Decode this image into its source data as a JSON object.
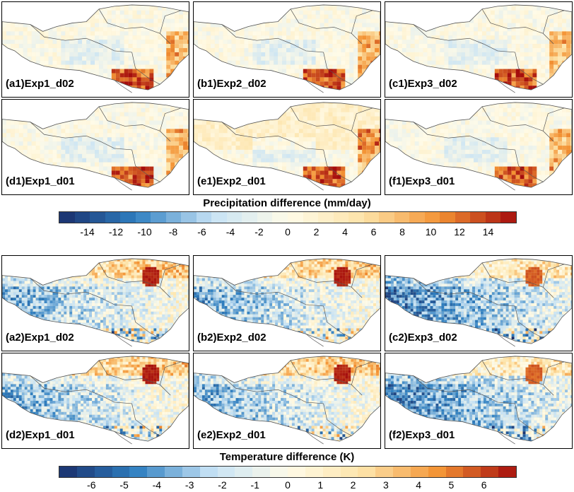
{
  "precip": {
    "title": "Precipitation difference (mm/day)",
    "ticks": [
      "-14",
      "-12",
      "-10",
      "-8",
      "-6",
      "-4",
      "-2",
      "0",
      "2",
      "4",
      "6",
      "8",
      "10",
      "12",
      "14"
    ],
    "panels": [
      {
        "label": "(a1)Exp1_d02"
      },
      {
        "label": "(b1)Exp2_d02"
      },
      {
        "label": "(c1)Exp3_d02"
      },
      {
        "label": "(d1)Exp1_d01"
      },
      {
        "label": "(e1)Exp2_d01"
      },
      {
        "label": "(f1)Exp3_d01"
      }
    ]
  },
  "temp": {
    "title": "Temperature difference (K)",
    "ticks": [
      "-6",
      "-5",
      "-4",
      "-3",
      "-2",
      "-1",
      "0",
      "1",
      "2",
      "3",
      "4",
      "5",
      "6"
    ],
    "panels": [
      {
        "label": "(a2)Exp1_d02"
      },
      {
        "label": "(b2)Exp2_d02"
      },
      {
        "label": "(c2)Exp3_d02"
      },
      {
        "label": "(d2)Exp1_d01"
      },
      {
        "label": "(e2)Exp2_d01"
      },
      {
        "label": "(f2)Exp3_d01"
      }
    ]
  },
  "colors": {
    "cold_dark": "#1a2f6b",
    "cold": "#2f7fc1",
    "cold_light": "#c6e2f5",
    "neutral": "#fffbe8",
    "warm_light": "#fde3a8",
    "warm": "#f39233",
    "warm_dark": "#a50d0d"
  }
}
